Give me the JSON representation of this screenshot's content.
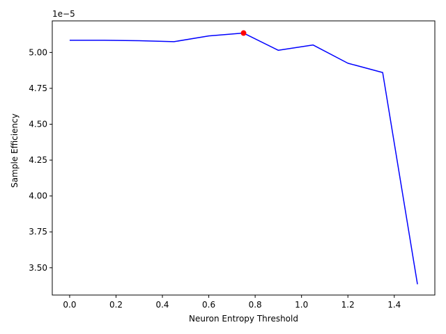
{
  "chart_data": {
    "type": "line",
    "title": "",
    "xlabel": "Neuron Entropy Threshold",
    "ylabel": "Sample Efficiency",
    "y_offset_label": "1e−5",
    "xlim": [
      -0.075,
      1.575
    ],
    "ylim": [
      3.31,
      5.22
    ],
    "x_ticks": [
      0.0,
      0.2,
      0.4,
      0.6,
      0.8,
      1.0,
      1.2,
      1.4
    ],
    "x_tick_labels": [
      "0.0",
      "0.2",
      "0.4",
      "0.6",
      "0.8",
      "1.0",
      "1.2",
      "1.4"
    ],
    "y_ticks": [
      3.5,
      3.75,
      4.0,
      4.25,
      4.5,
      4.75,
      5.0
    ],
    "y_tick_labels": [
      "3.50",
      "3.75",
      "4.00",
      "4.25",
      "4.50",
      "4.75",
      "5.00"
    ],
    "grid": false,
    "series": [
      {
        "color": "#0000ff",
        "x": [
          0.0,
          0.15,
          0.3,
          0.45,
          0.6,
          0.75,
          0.9,
          1.05,
          1.2,
          1.35,
          1.5
        ],
        "y": [
          5.085,
          5.085,
          5.082,
          5.075,
          5.115,
          5.135,
          5.015,
          5.052,
          4.925,
          4.86,
          3.385
        ]
      }
    ],
    "highlight_point": {
      "x": 0.75,
      "y": 5.135,
      "color": "#ff0000"
    }
  }
}
